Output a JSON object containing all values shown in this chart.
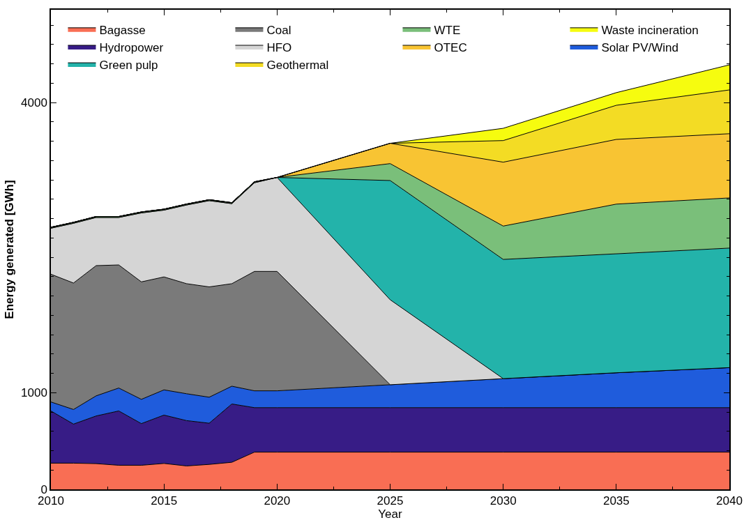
{
  "chart_data": {
    "type": "area",
    "stacked": true,
    "xlabel": "Year",
    "ylabel": "Energy generated [GWh]",
    "x": [
      2010,
      2011,
      2012,
      2013,
      2014,
      2015,
      2016,
      2017,
      2018,
      2019,
      2020,
      2025,
      2030,
      2035,
      2040
    ],
    "series": [
      {
        "name": "Bagasse",
        "color": "#f96e54",
        "values": [
          271,
          271,
          266,
          249,
          249,
          268,
          242,
          258,
          280,
          385,
          385,
          385,
          385,
          385,
          385
        ]
      },
      {
        "name": "Hydropower",
        "color": "#371c86",
        "values": [
          540,
          404,
          493,
          562,
          431,
          500,
          469,
          426,
          603,
          460,
          460,
          460,
          460,
          460,
          460
        ]
      },
      {
        "name": "Solar PV/Wind",
        "color": "#1f5cdc",
        "values": [
          93,
          151,
          208,
          237,
          251,
          261,
          278,
          269,
          184,
          174,
          174,
          237,
          300,
          361,
          414
        ]
      },
      {
        "name": "Coal",
        "color": "#7a7a7a",
        "values": [
          1321,
          1308,
          1347,
          1273,
          1215,
          1168,
          1138,
          1141,
          1060,
          1235,
          1235,
          0,
          0,
          0,
          0
        ]
      },
      {
        "name": "HFO",
        "color": "#d5d5d5",
        "values": [
          476,
          618,
          498,
          491,
          713,
          691,
          814,
          892,
          828,
          917,
          972,
          879,
          0,
          0,
          0
        ]
      },
      {
        "name": "Green pulp",
        "color": "#23b3aa",
        "values": [
          0,
          0,
          0,
          0,
          0,
          0,
          0,
          0,
          0,
          0,
          0,
          1233,
          1233,
          1230,
          1236
        ]
      },
      {
        "name": "WTE",
        "color": "#7abf7a",
        "values": [
          10,
          10,
          10,
          10,
          10,
          10,
          10,
          10,
          10,
          10,
          0,
          175,
          345,
          514,
          519
        ]
      },
      {
        "name": "OTEC",
        "color": "#f8c433",
        "values": [
          0,
          0,
          0,
          0,
          0,
          0,
          0,
          0,
          0,
          0,
          0,
          210,
          661,
          669,
          664
        ]
      },
      {
        "name": "Geothermal",
        "color": "#f3dc24",
        "values": [
          0,
          0,
          0,
          0,
          0,
          0,
          0,
          0,
          0,
          0,
          0,
          0,
          223,
          353,
          453
        ]
      },
      {
        "name": "Waste incineration",
        "color": "#f6fc0f",
        "values": [
          0,
          0,
          0,
          0,
          0,
          0,
          0,
          0,
          0,
          0,
          0,
          0,
          127,
          131,
          259
        ]
      }
    ],
    "xlim": [
      2010,
      2040
    ],
    "xticks": [
      2010,
      {
        "value": 2012.5,
        "label": null
      },
      2015,
      {
        "value": 2017.5,
        "label": null
      },
      2020,
      {
        "value": 2022.5,
        "label": null
      },
      2025,
      {
        "value": 2027.5,
        "label": null
      },
      2030,
      {
        "value": 2032.5,
        "label": null
      },
      2035,
      {
        "value": 2037.5,
        "label": null
      },
      2040
    ],
    "ylim": [
      0,
      4960
    ],
    "yticks": [
      0,
      {
        "value": 200,
        "label": null
      },
      {
        "value": 400,
        "label": null
      },
      {
        "value": 600,
        "label": null
      },
      {
        "value": 800,
        "label": null
      },
      1000,
      {
        "value": 1200,
        "label": null
      },
      {
        "value": 1400,
        "label": null
      },
      {
        "value": 1600,
        "label": null
      },
      {
        "value": 1800,
        "label": null
      },
      {
        "value": 2000,
        "label": null
      },
      {
        "value": 2200,
        "label": null
      },
      {
        "value": 2400,
        "label": null
      },
      {
        "value": 2600,
        "label": null
      },
      {
        "value": 2800,
        "label": null
      },
      {
        "value": 3000,
        "label": null
      },
      {
        "value": 3200,
        "label": null
      },
      {
        "value": 3400,
        "label": null
      },
      {
        "value": 3600,
        "label": null
      },
      {
        "value": 3800,
        "label": null
      },
      4000,
      {
        "value": 4200,
        "label": null
      },
      {
        "value": 4400,
        "label": null
      },
      {
        "value": 4600,
        "label": null
      },
      {
        "value": 4800,
        "label": null
      }
    ],
    "legend": "top",
    "line_style": "solid"
  }
}
